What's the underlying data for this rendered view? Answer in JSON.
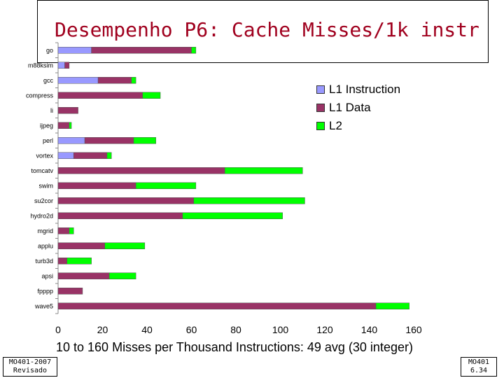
{
  "slide": {
    "title": "Desempenho P6: Cache Misses/1k instr",
    "caption": "10 to 160 Misses per Thousand Instructions: 49 avg (30 integer)",
    "footer_left": {
      "line1": "MO401-2007",
      "line2": "Revisado"
    },
    "footer_right": {
      "line1": "MO401",
      "line2": "6.34"
    }
  },
  "colors": {
    "title": "#a0001e",
    "l1_instruction": "#9999ff",
    "l1_data": "#993366",
    "l2": "#00ff00"
  },
  "chart_data": {
    "type": "bar",
    "orientation": "horizontal",
    "stacked": true,
    "title": "Desempenho P6: Cache Misses/1k instr",
    "xlabel": "10 to 160 Misses per Thousand Instructions: 49 avg (30 integer)",
    "ylabel": "",
    "xlim": [
      0,
      160
    ],
    "xticks": [
      0,
      20,
      40,
      60,
      80,
      100,
      120,
      140,
      160
    ],
    "legend_position": "top-right",
    "grid": false,
    "categories": [
      "go",
      "m88ksim",
      "gcc",
      "compress",
      "li",
      "ijpeg",
      "perl",
      "vortex",
      "tomcatv",
      "swim",
      "su2cor",
      "hydro2d",
      "mgrid",
      "applu",
      "turb3d",
      "apsi",
      "fpppp",
      "wave5"
    ],
    "series": [
      {
        "name": "L1 Instruction",
        "color": "#9999ff",
        "values": [
          15,
          3,
          18,
          0,
          0,
          0,
          12,
          7,
          0,
          0,
          0,
          0,
          0,
          0,
          0,
          0,
          0,
          0
        ]
      },
      {
        "name": "L1 Data",
        "color": "#993366",
        "values": [
          45,
          2,
          15,
          38,
          9,
          5,
          22,
          15,
          75,
          35,
          61,
          56,
          5,
          21,
          4,
          23,
          11,
          143
        ]
      },
      {
        "name": "L2",
        "color": "#00ff00",
        "values": [
          2,
          0,
          2,
          8,
          0,
          1,
          10,
          2,
          35,
          27,
          50,
          45,
          2,
          18,
          11,
          12,
          0,
          15
        ]
      }
    ]
  }
}
